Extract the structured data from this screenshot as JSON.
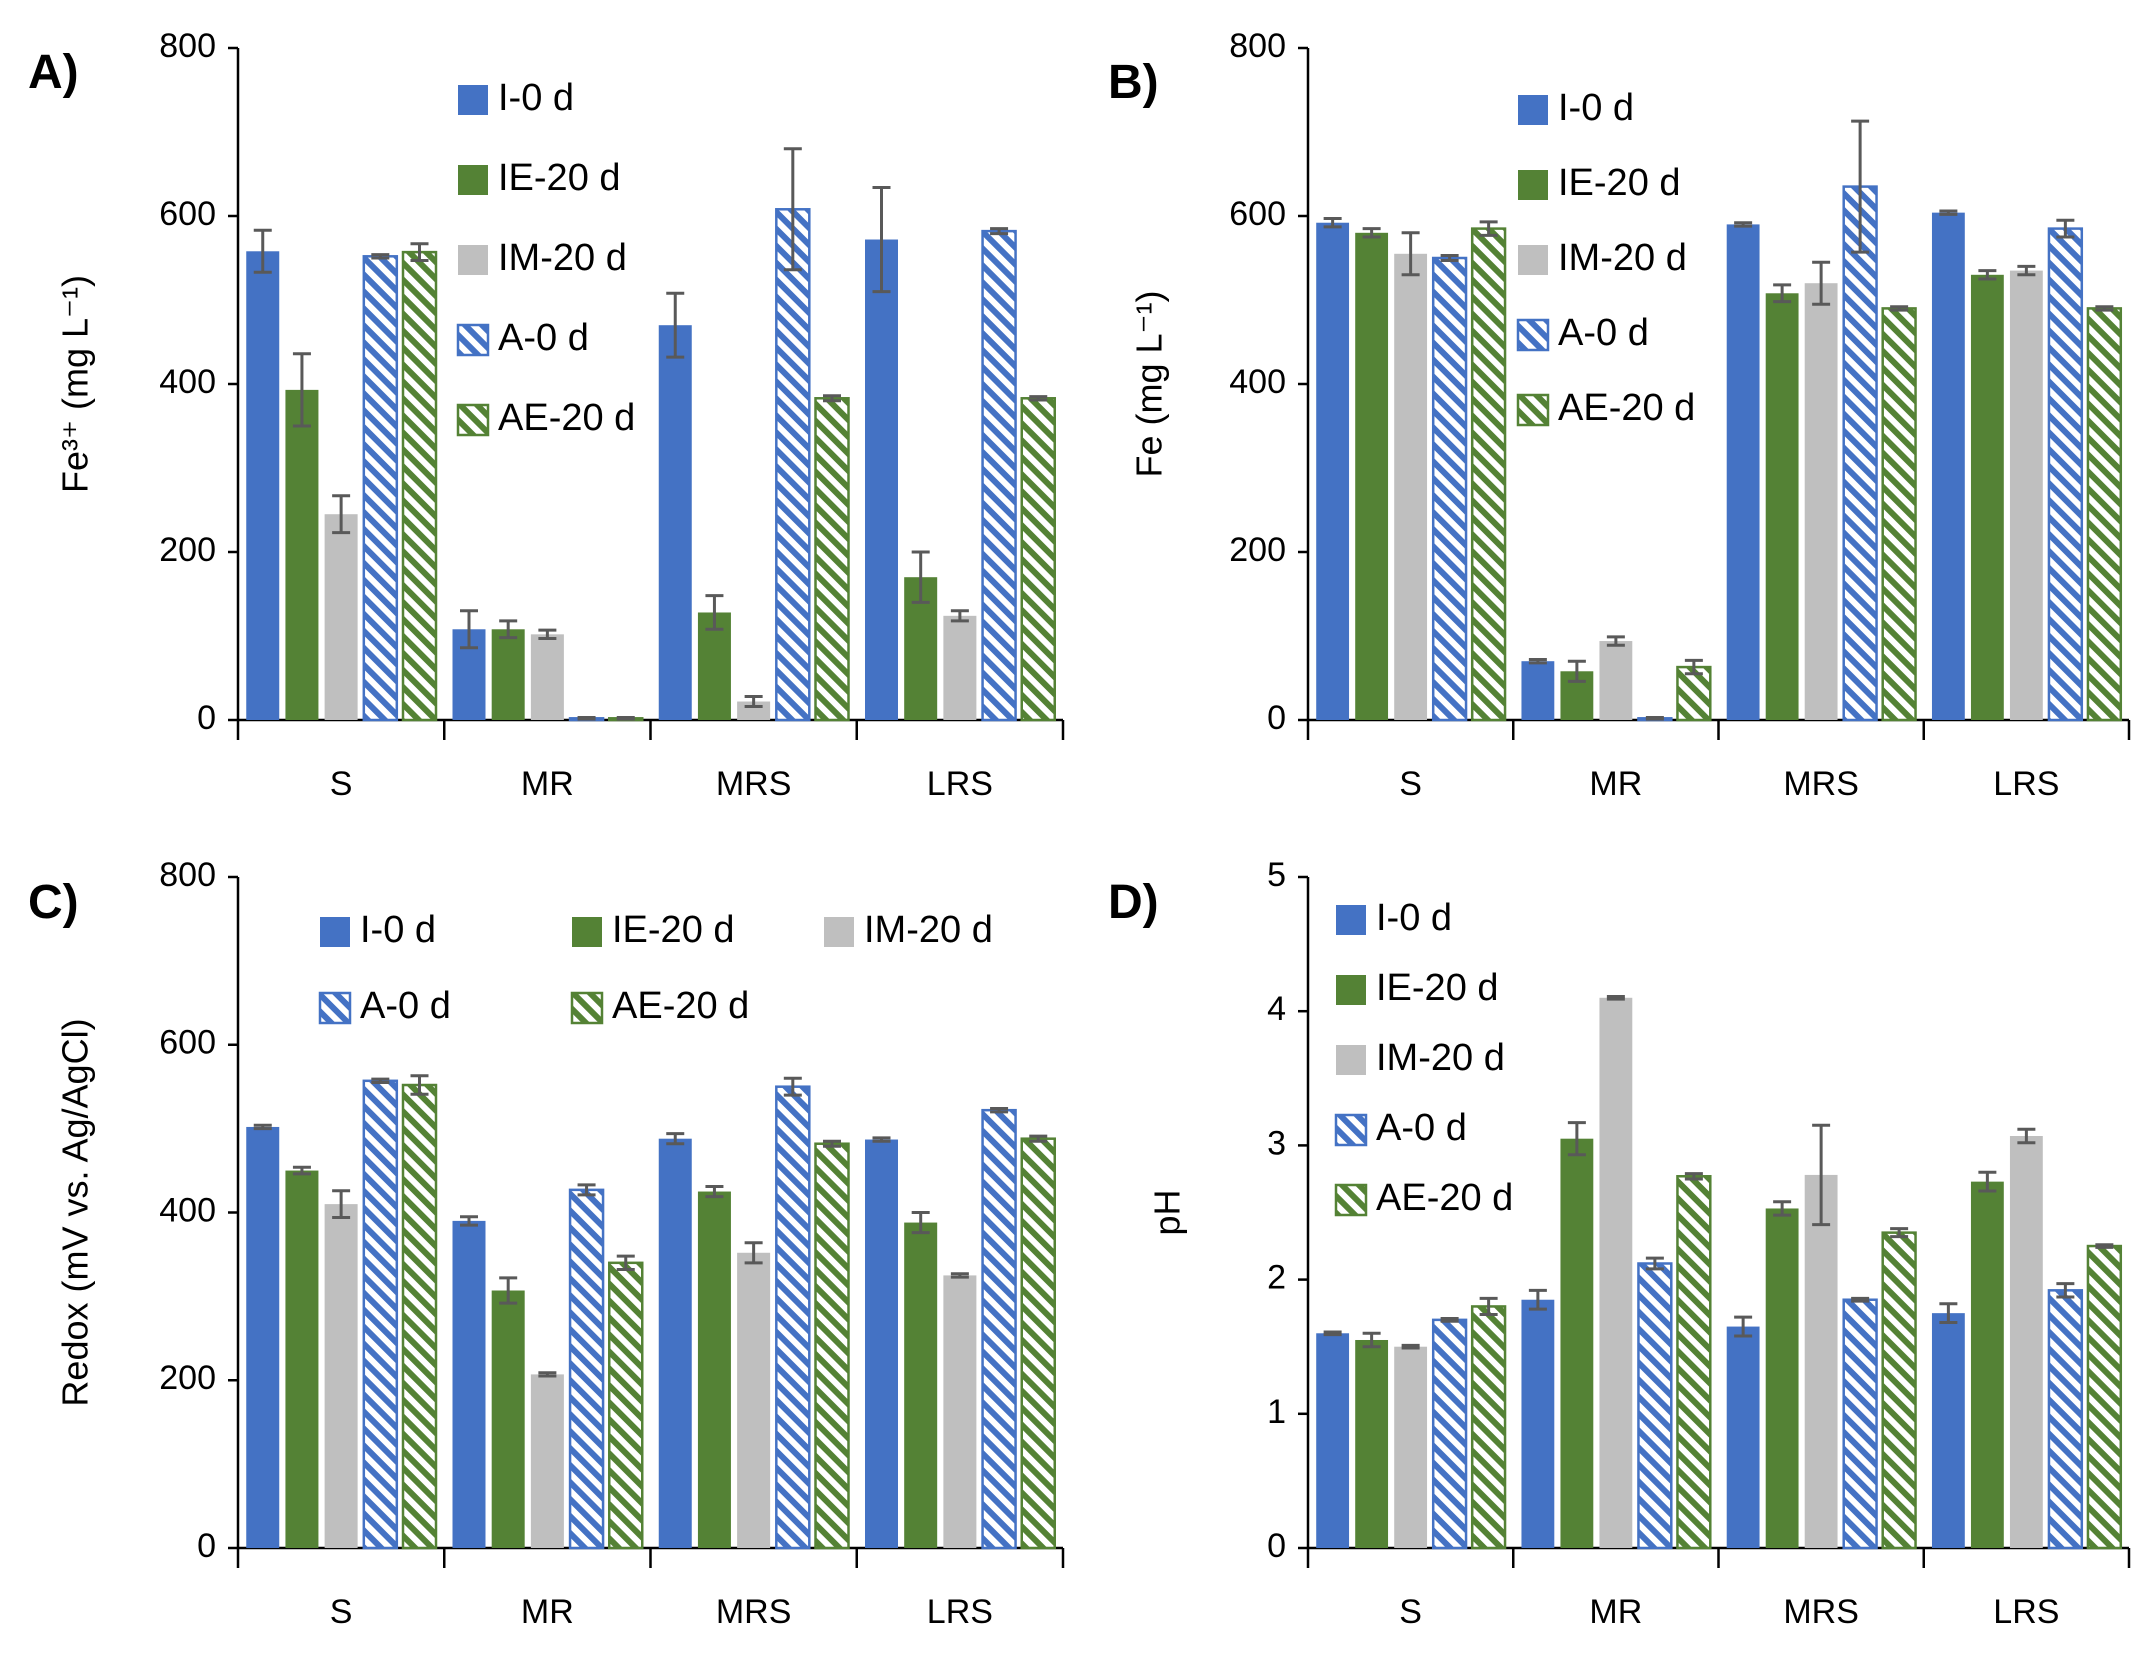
{
  "figure": {
    "width": 2149,
    "height": 1654
  },
  "series_styles": [
    {
      "name": "I-0 d",
      "color": "#4472C4",
      "pattern": "solid"
    },
    {
      "name": "IE-20 d",
      "color": "#548235",
      "pattern": "solid"
    },
    {
      "name": "IM-20 d",
      "color": "#BFBFBF",
      "pattern": "solid"
    },
    {
      "name": "A-0 d",
      "color": "#4472C4",
      "pattern": "hatched"
    },
    {
      "name": "AE-20 d",
      "color": "#548235",
      "pattern": "hatched"
    }
  ],
  "chart_data": [
    {
      "panel": "A)",
      "type": "bar",
      "ylabel": "Fe³⁺ (mg L⁻¹)",
      "ylim": [
        0,
        800
      ],
      "yticks": [
        "0",
        "200",
        "400",
        "600",
        "800"
      ],
      "categories": [
        "S",
        "MR",
        "MRS",
        "LRS"
      ],
      "legend_position": "top-left, single column",
      "series": [
        {
          "name": "I-0 d",
          "values": [
            558,
            108,
            470,
            572
          ],
          "errors": [
            25,
            22,
            38,
            62
          ]
        },
        {
          "name": "IE-20 d",
          "values": [
            393,
            108,
            128,
            170
          ],
          "errors": [
            43,
            10,
            20,
            30
          ]
        },
        {
          "name": "IM-20 d",
          "values": [
            245,
            102,
            22,
            124
          ],
          "errors": [
            22,
            5,
            6,
            6
          ]
        },
        {
          "name": "A-0 d",
          "values": [
            552,
            2,
            608,
            582
          ],
          "errors": [
            2,
            1,
            72,
            3
          ]
        },
        {
          "name": "AE-20 d",
          "values": [
            557,
            2,
            383,
            383
          ],
          "errors": [
            10,
            1,
            3,
            2
          ]
        }
      ]
    },
    {
      "panel": "B)",
      "type": "bar",
      "ylabel": "Fe (mg L⁻¹)",
      "ylim": [
        0,
        800
      ],
      "yticks": [
        "0",
        "200",
        "400",
        "600",
        "800"
      ],
      "categories": [
        "S",
        "MR",
        "MRS",
        "LRS"
      ],
      "legend_position": "top-left, single column",
      "series": [
        {
          "name": "I-0 d",
          "values": [
            592,
            70,
            590,
            604
          ],
          "errors": [
            5,
            2,
            2,
            2
          ]
        },
        {
          "name": "IE-20 d",
          "values": [
            580,
            58,
            508,
            530
          ],
          "errors": [
            5,
            12,
            10,
            5
          ]
        },
        {
          "name": "IM-20 d",
          "values": [
            555,
            94,
            520,
            535
          ],
          "errors": [
            25,
            5,
            25,
            5
          ]
        },
        {
          "name": "A-0 d",
          "values": [
            550,
            2,
            635,
            585
          ],
          "errors": [
            3,
            1,
            78,
            10
          ]
        },
        {
          "name": "AE-20 d",
          "values": [
            585,
            63,
            490,
            490
          ],
          "errors": [
            8,
            8,
            2,
            2
          ]
        }
      ]
    },
    {
      "panel": "C)",
      "type": "bar",
      "ylabel": "Redox (mV vs. Ag/AgCl)",
      "ylim": [
        0,
        800
      ],
      "yticks": [
        "0",
        "200",
        "400",
        "600",
        "800"
      ],
      "categories": [
        "S",
        "MR",
        "MRS",
        "LRS"
      ],
      "legend_position": "top, three columns",
      "series": [
        {
          "name": "I-0 d",
          "values": [
            502,
            390,
            488,
            487
          ],
          "errors": [
            2,
            5,
            6,
            2
          ]
        },
        {
          "name": "IE-20 d",
          "values": [
            450,
            307,
            425,
            388
          ],
          "errors": [
            4,
            15,
            6,
            12
          ]
        },
        {
          "name": "IM-20 d",
          "values": [
            410,
            207,
            352,
            325
          ],
          "errors": [
            16,
            2,
            12,
            2
          ]
        },
        {
          "name": "A-0 d",
          "values": [
            557,
            427,
            550,
            522
          ],
          "errors": [
            2,
            6,
            10,
            2
          ]
        },
        {
          "name": "AE-20 d",
          "values": [
            552,
            340,
            482,
            488
          ],
          "errors": [
            11,
            8,
            3,
            3
          ]
        }
      ]
    },
    {
      "panel": "D)",
      "type": "bar",
      "ylabel": "pH",
      "ylim": [
        0,
        5
      ],
      "yticks": [
        "0",
        "1",
        "2",
        "3",
        "4",
        "5"
      ],
      "categories": [
        "S",
        "MR",
        "MRS",
        "LRS"
      ],
      "legend_position": "top-left, single column",
      "series": [
        {
          "name": "I-0 d",
          "values": [
            1.6,
            1.85,
            1.65,
            1.75
          ],
          "errors": [
            0.01,
            0.07,
            0.07,
            0.07
          ]
        },
        {
          "name": "IE-20 d",
          "values": [
            1.55,
            3.05,
            2.53,
            2.73
          ],
          "errors": [
            0.05,
            0.12,
            0.05,
            0.07
          ]
        },
        {
          "name": "IM-20 d",
          "values": [
            1.5,
            4.1,
            2.78,
            3.07
          ],
          "errors": [
            0.01,
            0.01,
            0.37,
            0.05
          ]
        },
        {
          "name": "A-0 d",
          "values": [
            1.7,
            2.12,
            1.85,
            1.92
          ],
          "errors": [
            0.01,
            0.04,
            0.01,
            0.05
          ]
        },
        {
          "name": "AE-20 d",
          "values": [
            1.8,
            2.77,
            2.35,
            2.25
          ],
          "errors": [
            0.06,
            0.02,
            0.03,
            0.01
          ]
        }
      ]
    }
  ]
}
